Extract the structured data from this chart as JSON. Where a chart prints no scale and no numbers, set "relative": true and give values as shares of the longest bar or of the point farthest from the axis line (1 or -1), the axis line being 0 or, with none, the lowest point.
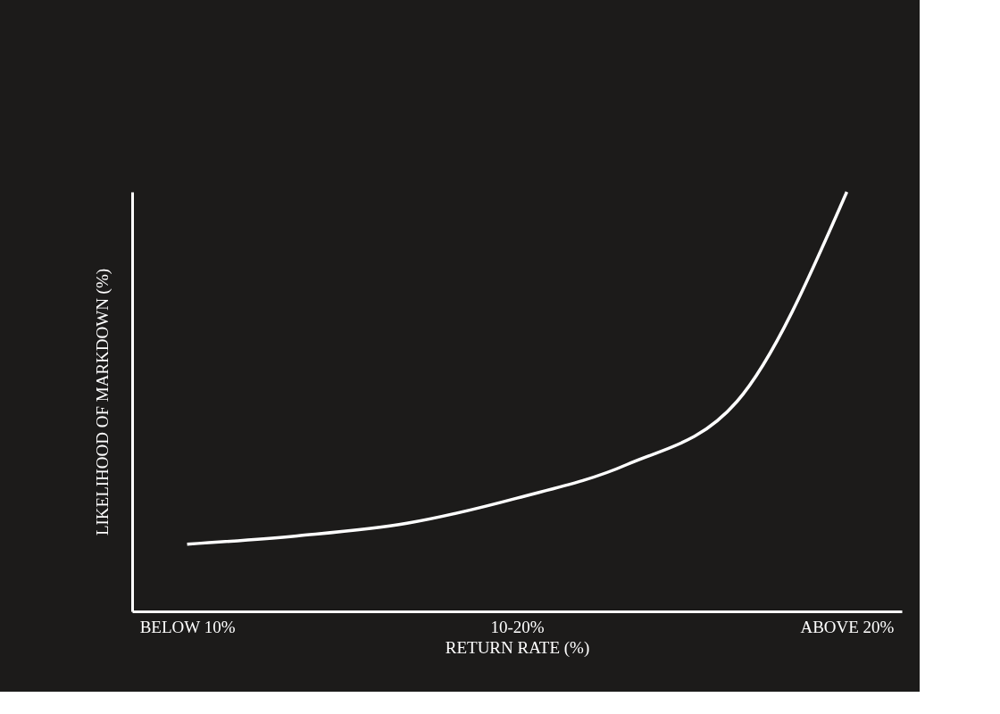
{
  "chart_data": {
    "type": "line",
    "relative": true,
    "xlabel": "RETURN RATE (%)",
    "ylabel": "LIKELIHOOD OF MARKDOWN (%)",
    "categories": [
      "BELOW 10%",
      null,
      null,
      "10-20%",
      null,
      null,
      "ABOVE 20%"
    ],
    "series": [
      {
        "color": "#ffffff",
        "values": [
          0.16,
          0.18,
          0.21,
          0.27,
          0.35,
          0.5,
          1
        ]
      }
    ],
    "tick_labels": "x",
    "grid": false,
    "marker": "none",
    "line_style": "solid"
  }
}
